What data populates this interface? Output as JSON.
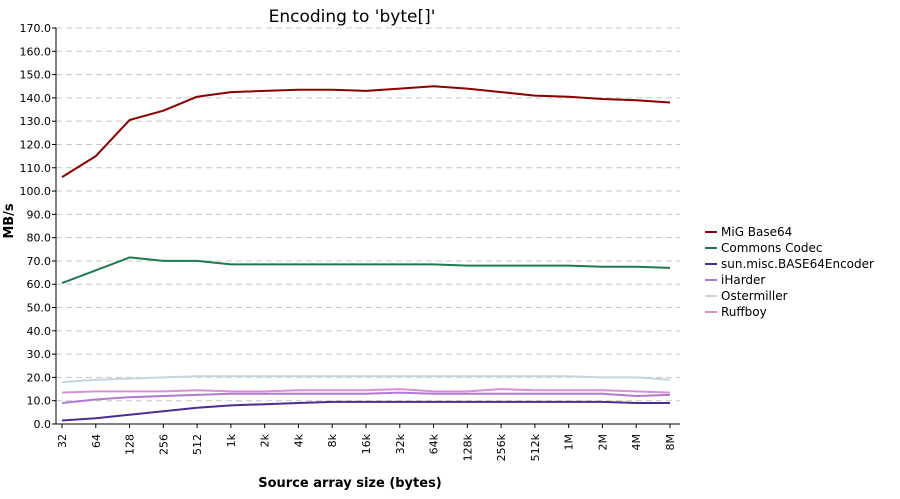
{
  "chart_data": {
    "type": "line",
    "title": "Encoding to 'byte[]'",
    "xlabel": "Source array size (bytes)",
    "ylabel": "MB/s",
    "ylim": [
      0,
      170
    ],
    "yticks": [
      "0.0",
      "10.0",
      "20.0",
      "30.0",
      "40.0",
      "50.0",
      "60.0",
      "70.0",
      "80.0",
      "90.0",
      "100.0",
      "110.0",
      "120.0",
      "130.0",
      "140.0",
      "150.0",
      "160.0",
      "170.0"
    ],
    "ytick_values": [
      0,
      10,
      20,
      30,
      40,
      50,
      60,
      70,
      80,
      90,
      100,
      110,
      120,
      130,
      140,
      150,
      160,
      170
    ],
    "categories": [
      "32",
      "64",
      "128",
      "256",
      "512",
      "1k",
      "2k",
      "4k",
      "8k",
      "16k",
      "32k",
      "64k",
      "128k",
      "256k",
      "512k",
      "1M",
      "2M",
      "4M",
      "8M"
    ],
    "grid": true,
    "legend_position": "right",
    "series": [
      {
        "name": "MiG Base64",
        "color": "#8b0000",
        "values": [
          106,
          115,
          130.5,
          134.5,
          140.5,
          142.5,
          143,
          143.5,
          143.5,
          143,
          144,
          145,
          144,
          142.5,
          141,
          140.5,
          139.5,
          139,
          138
        ]
      },
      {
        "name": "Commons Codec",
        "color": "#1e7a4f",
        "values": [
          60.5,
          66,
          71.5,
          70,
          70,
          68.5,
          68.5,
          68.5,
          68.5,
          68.5,
          68.5,
          68.5,
          68,
          68,
          68,
          68,
          67.5,
          67.5,
          67
        ]
      },
      {
        "name": "sun.misc.BASE64Encoder",
        "color": "#4b2e8f",
        "values": [
          1.5,
          2.5,
          4,
          5.5,
          7,
          8,
          8.5,
          9,
          9.5,
          9.5,
          9.5,
          9.5,
          9.5,
          9.5,
          9.5,
          9.5,
          9.5,
          9,
          9
        ]
      },
      {
        "name": "iHarder",
        "color": "#b07ad0",
        "values": [
          9,
          10.5,
          11.5,
          12,
          12.5,
          13,
          13,
          13,
          13,
          13,
          13.5,
          13,
          13,
          13,
          13,
          13,
          13,
          12,
          12.5
        ]
      },
      {
        "name": "Ostermiller",
        "color": "#c8d4dc",
        "values": [
          18,
          19,
          19.5,
          20,
          20.5,
          20.5,
          20.5,
          20.5,
          20.5,
          20.5,
          20.5,
          20.5,
          20.5,
          20.5,
          20.5,
          20.5,
          20,
          20,
          19
        ]
      },
      {
        "name": "Ruffboy",
        "color": "#d890d8",
        "values": [
          13.5,
          14,
          14,
          14,
          14.5,
          14,
          14,
          14.5,
          14.5,
          14.5,
          15,
          14,
          14,
          15,
          14.5,
          14.5,
          14.5,
          14,
          13.5
        ]
      }
    ]
  }
}
